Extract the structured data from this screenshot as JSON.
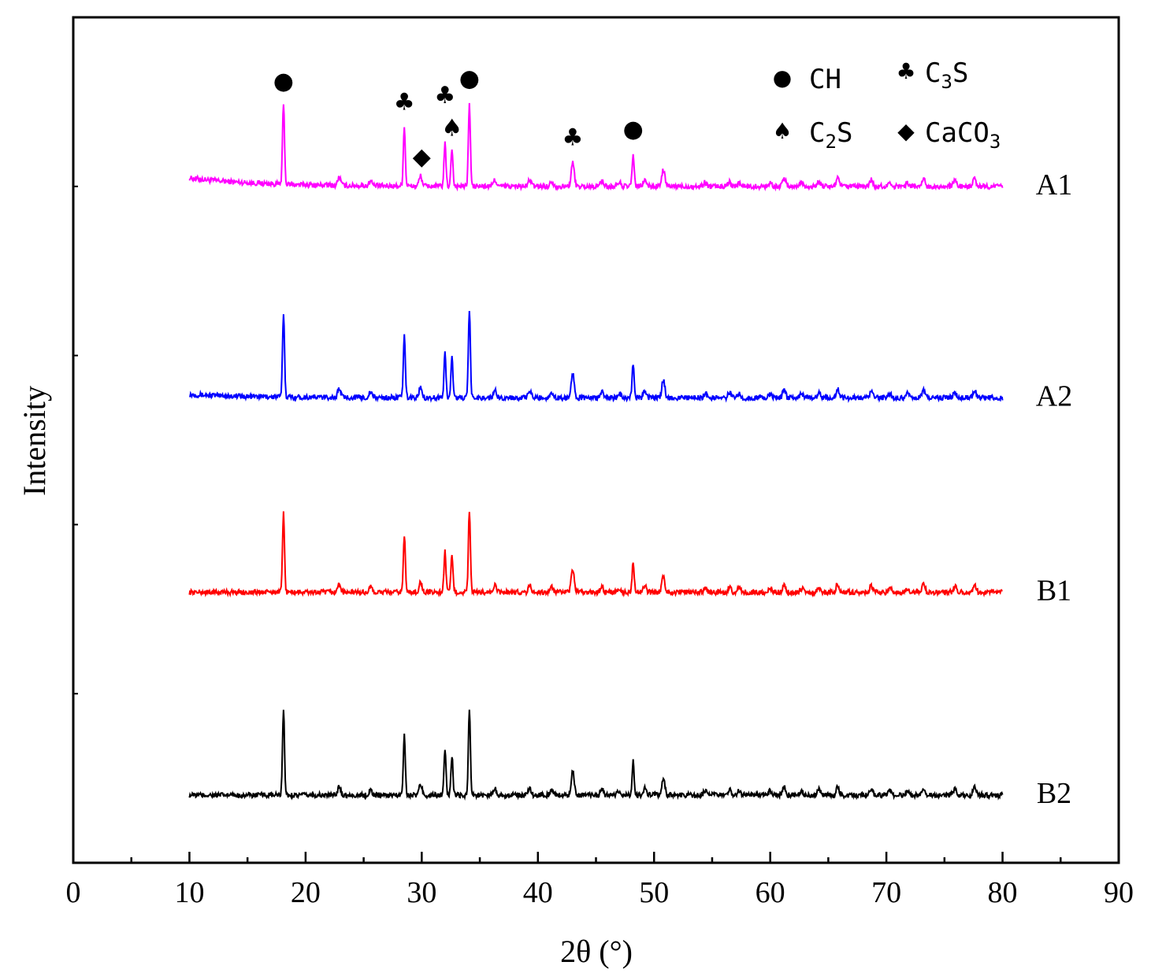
{
  "chart_data": {
    "type": "line",
    "title": "",
    "xlabel": "2θ (°)",
    "ylabel": "Intensity",
    "xlim": [
      0,
      90
    ],
    "xticks": [
      0,
      10,
      20,
      30,
      40,
      50,
      60,
      70,
      80,
      90
    ],
    "x_range_data": [
      10,
      80
    ],
    "grid": false,
    "series": [
      {
        "name": "A1",
        "color": "#ff00ff",
        "baseline": 0.8,
        "scale": 1.0,
        "slope": 0.05
      },
      {
        "name": "A2",
        "color": "#0000ff",
        "baseline": 0.55,
        "scale": 1.05,
        "slope": 0.02
      },
      {
        "name": "B1",
        "color": "#ff0000",
        "baseline": 0.32,
        "scale": 0.98,
        "slope": 0.0
      },
      {
        "name": "B2",
        "color": "#000000",
        "baseline": 0.08,
        "scale": 1.05,
        "slope": 0.0
      }
    ],
    "peaks": [
      {
        "x": 18.1,
        "h": 0.095
      },
      {
        "x": 22.9,
        "h": 0.01
      },
      {
        "x": 25.6,
        "h": 0.006
      },
      {
        "x": 28.5,
        "h": 0.07
      },
      {
        "x": 29.9,
        "h": 0.012
      },
      {
        "x": 32.0,
        "h": 0.05
      },
      {
        "x": 32.6,
        "h": 0.045
      },
      {
        "x": 34.1,
        "h": 0.098
      },
      {
        "x": 36.3,
        "h": 0.008
      },
      {
        "x": 39.3,
        "h": 0.008
      },
      {
        "x": 41.2,
        "h": 0.006
      },
      {
        "x": 43.0,
        "h": 0.028
      },
      {
        "x": 45.5,
        "h": 0.007
      },
      {
        "x": 47.0,
        "h": 0.005
      },
      {
        "x": 48.2,
        "h": 0.038
      },
      {
        "x": 49.2,
        "h": 0.008
      },
      {
        "x": 50.8,
        "h": 0.02
      },
      {
        "x": 54.4,
        "h": 0.005
      },
      {
        "x": 56.5,
        "h": 0.006
      },
      {
        "x": 57.3,
        "h": 0.005
      },
      {
        "x": 60.0,
        "h": 0.005
      },
      {
        "x": 61.2,
        "h": 0.01
      },
      {
        "x": 62.7,
        "h": 0.005
      },
      {
        "x": 64.2,
        "h": 0.006
      },
      {
        "x": 65.8,
        "h": 0.01
      },
      {
        "x": 68.7,
        "h": 0.008
      },
      {
        "x": 70.3,
        "h": 0.005
      },
      {
        "x": 71.8,
        "h": 0.005
      },
      {
        "x": 73.2,
        "h": 0.009
      },
      {
        "x": 75.9,
        "h": 0.007
      },
      {
        "x": 77.6,
        "h": 0.009
      }
    ],
    "annotations": [
      {
        "symbol": "●",
        "phase": "CH",
        "x": 18.1
      },
      {
        "symbol": "♣",
        "phase": "C3S",
        "x": 28.5
      },
      {
        "symbol": "◆",
        "phase": "CaCO3",
        "x": 30.0
      },
      {
        "symbol": "♣",
        "phase": "C3S",
        "x": 32.0
      },
      {
        "symbol": "♠",
        "phase": "C2S",
        "x": 32.6
      },
      {
        "symbol": "●",
        "phase": "CH",
        "x": 34.1
      },
      {
        "symbol": "♣",
        "phase": "C3S",
        "x": 43.0
      },
      {
        "symbol": "●",
        "phase": "CH",
        "x": 48.2
      }
    ],
    "legend": {
      "placement": "top-right",
      "entries": [
        {
          "symbol": "●",
          "label": "CH"
        },
        {
          "symbol": "♣",
          "label": "C3S",
          "text": "C",
          "sub": "3",
          "text2": "S"
        },
        {
          "symbol": "♠",
          "label": "C2S",
          "text": "C",
          "sub": "2",
          "text2": "S"
        },
        {
          "symbol": "◆",
          "label": "CaCO3",
          "text": "CaCO",
          "sub": "3",
          "text2": ""
        }
      ]
    }
  }
}
